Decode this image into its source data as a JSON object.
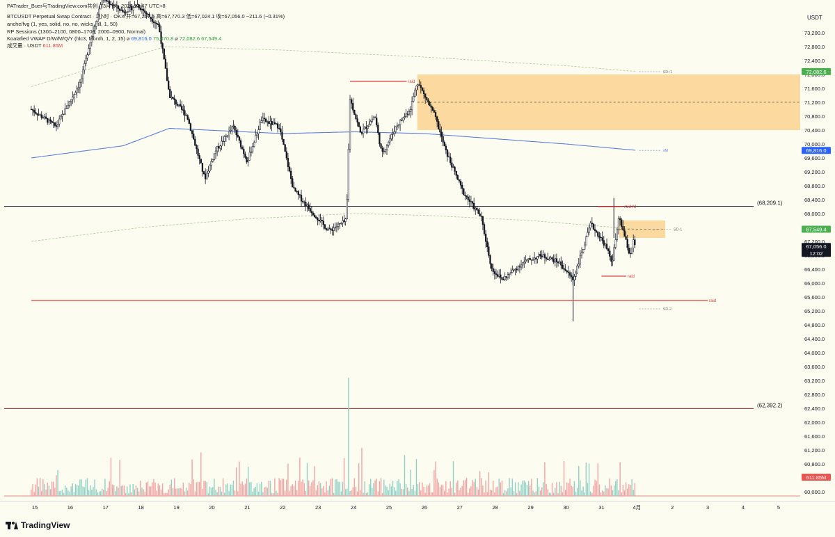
{
  "header": {
    "line1": "PATrader_Buer与TradingView.com共创，3月 31, 2026 22:47 UTC+8",
    "line2": "BTCUSDT Perpetual Swap Contract · 1小时 · OKX  开=67,267.6  高=67,770.3  低=67,024.1  收=67,056.0  −211.6 (−0.31%)",
    "line3": "anche/fvg (1, yes, solid, no, no, wicks, fill, 1, 50)",
    "line4": "RP Sessions (1300–2100, 0800–1700, 2000–0900, Normal)",
    "line5_label": "Koalafied VWAP D/W/M/Q/Y  (hlc3, Month, 1, 2, 15)  ⌀",
    "line5_v1": "69,816.0",
    "line5_v2": "75,470.8",
    "line5_v3": "72,082.6",
    "line5_v4": "67,549.4",
    "line6_label": "成交量 · USDT",
    "line6_value": "611.85M"
  },
  "brand": "TradingView",
  "colors": {
    "background": "#fdfcf0",
    "up": "#ffffff",
    "down": "#131722",
    "vwap": "#5b7fe0",
    "sd_band": "#a9c79a",
    "zone": "#fcd28f",
    "raid": "#e33c3c",
    "green_label": "#4caf50",
    "blue_label": "#2962ff",
    "red_label": "#ef5350"
  },
  "chart_data": {
    "type": "candlestick",
    "ylim": [
      59800,
      73900
    ],
    "y_ticks": [
      "73,200.0",
      "72,800.0",
      "72,400.0",
      "72,000.0",
      "71,600.0",
      "71,200.0",
      "70,800.0",
      "70,400.0",
      "70,000.0",
      "69,600.0",
      "69,200.0",
      "68,800.0",
      "68,400.0",
      "68,000.0",
      "67,600.0",
      "67,200.0",
      "66,800.0",
      "66,400.0",
      "66,000.0",
      "65,600.0",
      "65,200.0",
      "64,800.0",
      "64,400.0",
      "64,000.0",
      "63,600.0",
      "63,200.0",
      "62,800.0",
      "62,400.0",
      "62,000.0",
      "61,600.0",
      "61,200.0",
      "60,800.0",
      "60,400.0",
      "60,000.0"
    ],
    "y_tick_values": [
      73200,
      72800,
      72400,
      72000,
      71600,
      71200,
      70800,
      70400,
      70000,
      69600,
      69200,
      68800,
      68400,
      68000,
      67600,
      67200,
      66800,
      66400,
      66000,
      65600,
      65200,
      64800,
      64400,
      64000,
      63600,
      63200,
      62800,
      62400,
      62000,
      61600,
      61200,
      60800,
      60400,
      60000
    ],
    "currency_label": "USDT",
    "x_ticks": [
      "15",
      "16",
      "17",
      "18",
      "19",
      "20",
      "21",
      "22",
      "23",
      "24",
      "25",
      "26",
      "27",
      "28",
      "29",
      "30",
      "31",
      "4月",
      "2",
      "3",
      "4",
      "5"
    ],
    "x_tick_days": [
      15,
      16,
      17,
      18,
      19,
      20,
      21,
      22,
      23,
      24,
      25,
      26,
      27,
      28,
      29,
      30,
      31,
      32,
      33,
      34,
      35,
      36
    ],
    "anchors": [
      {
        "day": 14.9,
        "price": 71000
      },
      {
        "day": 15.6,
        "price": 70500
      },
      {
        "day": 16.3,
        "price": 71800
      },
      {
        "day": 16.5,
        "price": 72700
      },
      {
        "day": 16.9,
        "price": 74200
      },
      {
        "day": 17.5,
        "price": 73800
      },
      {
        "day": 17.9,
        "price": 74000
      },
      {
        "day": 18.5,
        "price": 73400
      },
      {
        "day": 18.8,
        "price": 71400
      },
      {
        "day": 19.3,
        "price": 70800
      },
      {
        "day": 19.8,
        "price": 69000
      },
      {
        "day": 20.1,
        "price": 69800
      },
      {
        "day": 20.6,
        "price": 70500
      },
      {
        "day": 21.0,
        "price": 69500
      },
      {
        "day": 21.4,
        "price": 70700
      },
      {
        "day": 21.9,
        "price": 70500
      },
      {
        "day": 22.3,
        "price": 68700
      },
      {
        "day": 22.7,
        "price": 68200
      },
      {
        "day": 23.3,
        "price": 67500
      },
      {
        "day": 23.8,
        "price": 67800
      },
      {
        "day": 23.9,
        "price": 71300
      },
      {
        "day": 24.2,
        "price": 70300
      },
      {
        "day": 24.6,
        "price": 70800
      },
      {
        "day": 24.8,
        "price": 69700
      },
      {
        "day": 25.2,
        "price": 70500
      },
      {
        "day": 25.6,
        "price": 71000
      },
      {
        "day": 25.8,
        "price": 71800
      },
      {
        "day": 26.3,
        "price": 70800
      },
      {
        "day": 26.6,
        "price": 69800
      },
      {
        "day": 27.1,
        "price": 68600
      },
      {
        "day": 27.6,
        "price": 67900
      },
      {
        "day": 27.9,
        "price": 66400
      },
      {
        "day": 28.2,
        "price": 66100
      },
      {
        "day": 28.8,
        "price": 66600
      },
      {
        "day": 29.3,
        "price": 66800
      },
      {
        "day": 29.8,
        "price": 66600
      },
      {
        "day": 30.2,
        "price": 66100
      },
      {
        "day": 30.7,
        "price": 67700
      },
      {
        "day": 31.1,
        "price": 67100
      },
      {
        "day": 31.3,
        "price": 66600
      },
      {
        "day": 31.5,
        "price": 67900
      },
      {
        "day": 31.8,
        "price": 66800
      },
      {
        "day": 31.9,
        "price": 67200
      },
      {
        "day": 31.95,
        "price": 67056
      }
    ],
    "vwap_points": [
      {
        "day": 14.9,
        "price": 69600
      },
      {
        "day": 17.5,
        "price": 69950
      },
      {
        "day": 18.8,
        "price": 70450
      },
      {
        "day": 22.0,
        "price": 70300
      },
      {
        "day": 24.0,
        "price": 70350
      },
      {
        "day": 26.0,
        "price": 70300
      },
      {
        "day": 28.0,
        "price": 70150
      },
      {
        "day": 30.0,
        "price": 70000
      },
      {
        "day": 32.0,
        "price": 69816
      }
    ],
    "sd_upper_points": [
      {
        "day": 14.9,
        "price": 71650
      },
      {
        "day": 17.0,
        "price": 72300
      },
      {
        "day": 18.7,
        "price": 72800
      },
      {
        "day": 22.0,
        "price": 72700
      },
      {
        "day": 26.0,
        "price": 72500
      },
      {
        "day": 30.0,
        "price": 72250
      },
      {
        "day": 32.0,
        "price": 72083
      }
    ],
    "sd_lower_points": [
      {
        "day": 14.9,
        "price": 67200
      },
      {
        "day": 18.0,
        "price": 67600
      },
      {
        "day": 21.0,
        "price": 67850
      },
      {
        "day": 24.0,
        "price": 68000
      },
      {
        "day": 26.0,
        "price": 67950
      },
      {
        "day": 29.0,
        "price": 67800
      },
      {
        "day": 32.0,
        "price": 67549
      }
    ],
    "volume_spike_day": 23.85,
    "zones": [
      {
        "day_start": 25.8,
        "day_end": 36.8,
        "price_top": 72000,
        "price_bottom": 70400,
        "mid": 71200
      },
      {
        "day_start": 31.5,
        "day_end": 32.8,
        "price_top": 67800,
        "price_bottom": 67300,
        "mid": 67550
      }
    ],
    "horizontal_lines": [
      {
        "price": 68209.1,
        "label": "(68,209.1)",
        "color": "#131722"
      },
      {
        "price": 62392.2,
        "label": "(62,392.2)",
        "color": "#8a2b2b"
      }
    ],
    "raid_lines": [
      {
        "day_start": 23.9,
        "day_end": 25.5,
        "price": 71800,
        "label": "raid"
      },
      {
        "day_start": 30.9,
        "day_end": 31.6,
        "price": 68200,
        "label": "raid-M"
      },
      {
        "day_start": 31.0,
        "day_end": 31.7,
        "price": 66200,
        "label": "raid"
      },
      {
        "day_start": 14.9,
        "day_end": 34.0,
        "price": 65500,
        "label": "raid"
      }
    ],
    "sd_labels": [
      {
        "day": 32.3,
        "price": 72080,
        "label": "SD+1"
      },
      {
        "day": 32.3,
        "price": 69816,
        "label": "vM"
      },
      {
        "day": 32.6,
        "price": 67549,
        "label": "SD-1"
      },
      {
        "day": 32.3,
        "price": 65260,
        "label": "SD-2"
      }
    ],
    "price_labels": [
      {
        "price": 72082.6,
        "text": "72,082.6",
        "color": "#4caf50"
      },
      {
        "price": 69816.0,
        "text": "69,816.0",
        "color": "#2962ff"
      },
      {
        "price": 67549.4,
        "text": "67,549.4",
        "color": "#4caf50"
      },
      {
        "price": 67056.0,
        "text": "67,056.0",
        "sub": "12:02",
        "color": "#131722"
      },
      {
        "price": 60420,
        "text": "611.85M",
        "color": "#ef5350"
      }
    ]
  }
}
